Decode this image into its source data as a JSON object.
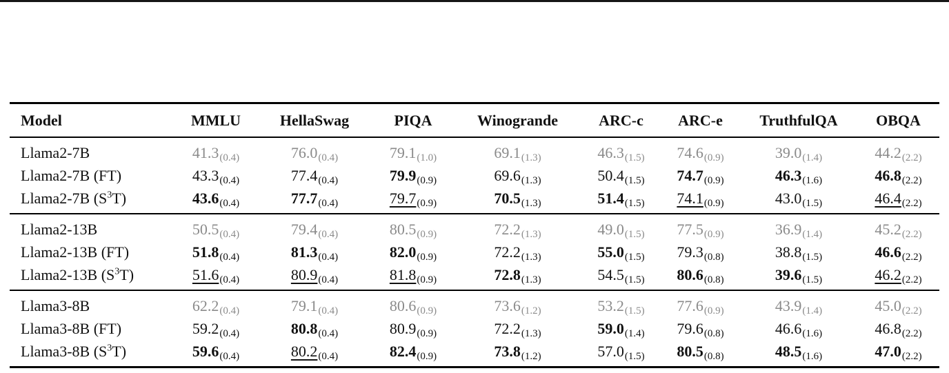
{
  "colors": {
    "text": "#111111",
    "gray_baseline": "#8a8a8a",
    "rule": "#000000",
    "background": "#ffffff"
  },
  "table": {
    "header": {
      "model_label": "Model",
      "benchmarks": [
        "MMLU",
        "HellaSwag",
        "PIQA",
        "Winogrande",
        "ARC-c",
        "ARC-e",
        "TruthfulQA",
        "OBQA"
      ]
    },
    "groups": [
      {
        "rows": [
          {
            "id": "llama2-7b",
            "model": [
              {
                "t": "Llama2-7B"
              }
            ],
            "cells": [
              {
                "v": "41.3",
                "se": "(0.4)",
                "s": "gray"
              },
              {
                "v": "76.0",
                "se": "(0.4)",
                "s": "gray"
              },
              {
                "v": "79.1",
                "se": "(1.0)",
                "s": "gray"
              },
              {
                "v": "69.1",
                "se": "(1.3)",
                "s": "gray"
              },
              {
                "v": "46.3",
                "se": "(1.5)",
                "s": "gray"
              },
              {
                "v": "74.6",
                "se": "(0.9)",
                "s": "gray"
              },
              {
                "v": "39.0",
                "se": "(1.4)",
                "s": "gray"
              },
              {
                "v": "44.2",
                "se": "(2.2)",
                "s": "gray"
              }
            ]
          },
          {
            "id": "llama2-7b-ft",
            "model": [
              {
                "t": "Llama2-7B (FT)"
              }
            ],
            "cells": [
              {
                "v": "43.3",
                "se": "(0.4)",
                "s": "normal"
              },
              {
                "v": "77.4",
                "se": "(0.4)",
                "s": "normal"
              },
              {
                "v": "79.9",
                "se": "(0.9)",
                "s": "bold"
              },
              {
                "v": "69.6",
                "se": "(1.3)",
                "s": "normal"
              },
              {
                "v": "50.4",
                "se": "(1.5)",
                "s": "normal"
              },
              {
                "v": "74.7",
                "se": "(0.9)",
                "s": "bold"
              },
              {
                "v": "46.3",
                "se": "(1.6)",
                "s": "bold"
              },
              {
                "v": "46.8",
                "se": "(2.2)",
                "s": "bold"
              }
            ]
          },
          {
            "id": "llama2-7b-s3t",
            "model": [
              {
                "t": "Llama2-7B (S"
              },
              {
                "t": "3",
                "sup": true
              },
              {
                "t": "T)"
              }
            ],
            "cells": [
              {
                "v": "43.6",
                "se": "(0.4)",
                "s": "bold"
              },
              {
                "v": "77.7",
                "se": "(0.4)",
                "s": "bold"
              },
              {
                "v": "79.7",
                "se": "(0.9)",
                "s": "underline"
              },
              {
                "v": "70.5",
                "se": "(1.3)",
                "s": "bold"
              },
              {
                "v": "51.4",
                "se": "(1.5)",
                "s": "bold"
              },
              {
                "v": "74.1",
                "se": "(0.9)",
                "s": "underline"
              },
              {
                "v": "43.0",
                "se": "(1.5)",
                "s": "normal"
              },
              {
                "v": "46.4",
                "se": "(2.2)",
                "s": "underline"
              }
            ]
          }
        ]
      },
      {
        "rows": [
          {
            "id": "llama2-13b",
            "model": [
              {
                "t": "Llama2-13B"
              }
            ],
            "cells": [
              {
                "v": "50.5",
                "se": "(0.4)",
                "s": "gray"
              },
              {
                "v": "79.4",
                "se": "(0.4)",
                "s": "gray"
              },
              {
                "v": "80.5",
                "se": "(0.9)",
                "s": "gray"
              },
              {
                "v": "72.2",
                "se": "(1.3)",
                "s": "gray"
              },
              {
                "v": "49.0",
                "se": "(1.5)",
                "s": "gray"
              },
              {
                "v": "77.5",
                "se": "(0.9)",
                "s": "gray"
              },
              {
                "v": "36.9",
                "se": "(1.4)",
                "s": "gray"
              },
              {
                "v": "45.2",
                "se": "(2.2)",
                "s": "gray"
              }
            ]
          },
          {
            "id": "llama2-13b-ft",
            "model": [
              {
                "t": "Llama2-13B (FT)"
              }
            ],
            "cells": [
              {
                "v": "51.8",
                "se": "(0.4)",
                "s": "bold"
              },
              {
                "v": "81.3",
                "se": "(0.4)",
                "s": "bold"
              },
              {
                "v": "82.0",
                "se": "(0.9)",
                "s": "bold"
              },
              {
                "v": "72.2",
                "se": "(1.3)",
                "s": "normal"
              },
              {
                "v": "55.0",
                "se": "(1.5)",
                "s": "bold"
              },
              {
                "v": "79.3",
                "se": "(0.8)",
                "s": "normal"
              },
              {
                "v": "38.8",
                "se": "(1.5)",
                "s": "normal"
              },
              {
                "v": "46.6",
                "se": "(2.2)",
                "s": "bold"
              }
            ]
          },
          {
            "id": "llama2-13b-s3t",
            "model": [
              {
                "t": "Llama2-13B (S"
              },
              {
                "t": "3",
                "sup": true
              },
              {
                "t": "T)"
              }
            ],
            "cells": [
              {
                "v": "51.6",
                "se": "(0.4)",
                "s": "underline"
              },
              {
                "v": "80.9",
                "se": "(0.4)",
                "s": "underline"
              },
              {
                "v": "81.8",
                "se": "(0.9)",
                "s": "underline"
              },
              {
                "v": "72.8",
                "se": "(1.3)",
                "s": "bold"
              },
              {
                "v": "54.5",
                "se": "(1.5)",
                "s": "normal"
              },
              {
                "v": "80.6",
                "se": "(0.8)",
                "s": "bold"
              },
              {
                "v": "39.6",
                "se": "(1.5)",
                "s": "bold"
              },
              {
                "v": "46.2",
                "se": "(2.2)",
                "s": "underline"
              }
            ]
          }
        ]
      },
      {
        "rows": [
          {
            "id": "llama3-8b",
            "model": [
              {
                "t": "Llama3-8B"
              }
            ],
            "cells": [
              {
                "v": "62.2",
                "se": "(0.4)",
                "s": "gray"
              },
              {
                "v": "79.1",
                "se": "(0.4)",
                "s": "gray"
              },
              {
                "v": "80.6",
                "se": "(0.9)",
                "s": "gray"
              },
              {
                "v": "73.6",
                "se": "(1.2)",
                "s": "gray"
              },
              {
                "v": "53.2",
                "se": "(1.5)",
                "s": "gray"
              },
              {
                "v": "77.6",
                "se": "(0.9)",
                "s": "gray"
              },
              {
                "v": "43.9",
                "se": "(1.4)",
                "s": "gray"
              },
              {
                "v": "45.0",
                "se": "(2.2)",
                "s": "gray"
              }
            ]
          },
          {
            "id": "llama3-8b-ft",
            "model": [
              {
                "t": "Llama3-8B (FT)"
              }
            ],
            "cells": [
              {
                "v": "59.2",
                "se": "(0.4)",
                "s": "normal"
              },
              {
                "v": "80.8",
                "se": "(0.4)",
                "s": "bold"
              },
              {
                "v": "80.9",
                "se": "(0.9)",
                "s": "normal"
              },
              {
                "v": "72.2",
                "se": "(1.3)",
                "s": "normal"
              },
              {
                "v": "59.0",
                "se": "(1.4)",
                "s": "bold"
              },
              {
                "v": "79.6",
                "se": "(0.8)",
                "s": "normal"
              },
              {
                "v": "46.6",
                "se": "(1.6)",
                "s": "normal"
              },
              {
                "v": "46.8",
                "se": "(2.2)",
                "s": "normal"
              }
            ]
          },
          {
            "id": "llama3-8b-s3t",
            "model": [
              {
                "t": "Llama3-8B (S"
              },
              {
                "t": "3",
                "sup": true
              },
              {
                "t": "T)"
              }
            ],
            "cells": [
              {
                "v": "59.6",
                "se": "(0.4)",
                "s": "bold"
              },
              {
                "v": "80.2",
                "se": "(0.4)",
                "s": "underline"
              },
              {
                "v": "82.4",
                "se": "(0.9)",
                "s": "bold"
              },
              {
                "v": "73.8",
                "se": "(1.2)",
                "s": "bold"
              },
              {
                "v": "57.0",
                "se": "(1.5)",
                "s": "normal"
              },
              {
                "v": "80.5",
                "se": "(0.8)",
                "s": "bold"
              },
              {
                "v": "48.5",
                "se": "(1.6)",
                "s": "bold"
              },
              {
                "v": "47.0",
                "se": "(2.2)",
                "s": "bold"
              }
            ]
          }
        ]
      }
    ]
  }
}
